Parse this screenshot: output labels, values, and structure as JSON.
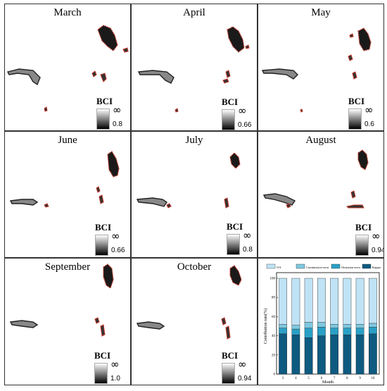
{
  "legend_label": "BCI",
  "legend_max_symbol": "∞",
  "panels": [
    {
      "title": "March",
      "min": "0.8"
    },
    {
      "title": "April",
      "min": "0.66"
    },
    {
      "title": "May",
      "min": "0.6"
    },
    {
      "title": "June",
      "min": "0.66"
    },
    {
      "title": "July",
      "min": "0.8"
    },
    {
      "title": "August",
      "min": "0.94"
    },
    {
      "title": "September",
      "min": "1.0"
    },
    {
      "title": "October",
      "min": "0.94"
    }
  ],
  "colors": {
    "dark_patch": "#1a1a1a",
    "edge": "#c0392b",
    "oa": "#bfe3f5",
    "commission": "#7fc8e0",
    "omission": "#2aa0c6",
    "kappa": "#0e5a80"
  },
  "chart_data": {
    "type": "bar",
    "stacked": true,
    "categories": [
      "3",
      "4",
      "5",
      "6",
      "7",
      "8",
      "9",
      "10"
    ],
    "series": [
      {
        "name": "Kappa",
        "values": [
          42,
          41,
          38,
          40,
          41,
          41,
          41,
          42
        ]
      },
      {
        "name": "Omission error",
        "values": [
          6,
          6,
          10,
          9,
          7,
          7,
          7,
          7
        ]
      },
      {
        "name": "Commission error",
        "values": [
          4,
          4,
          6,
          5,
          4,
          4,
          4,
          4
        ]
      },
      {
        "name": "OA",
        "values": [
          48,
          49,
          46,
          46,
          48,
          48,
          48,
          47
        ]
      }
    ],
    "legend_order": [
      "OA",
      "Commission error",
      "Omission error",
      "Kappa"
    ],
    "xlabel": "Month",
    "ylabel": "Contribution rate(%)",
    "ylim": [
      0,
      100
    ],
    "yticks": [
      "0",
      "20",
      "40",
      "60",
      "80",
      "100"
    ],
    "legend_position": "top"
  }
}
